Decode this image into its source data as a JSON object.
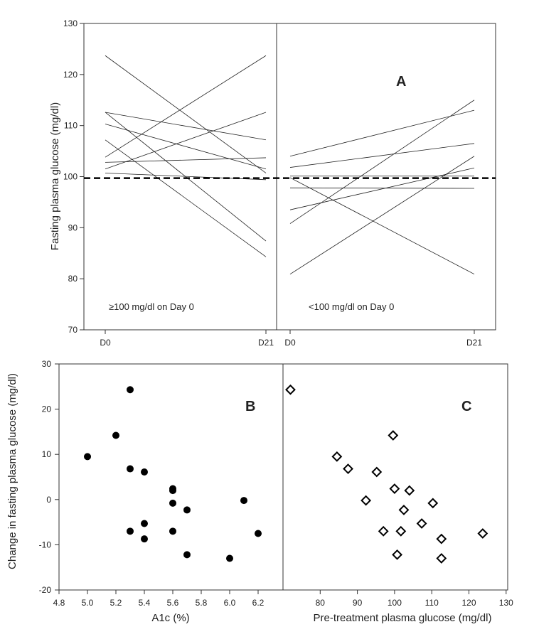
{
  "chart_data": [
    {
      "id": "A",
      "type": "line",
      "panel_label": "A",
      "ylabel": "Fasting plasma glucose (mg/dl)",
      "ylim": [
        70,
        130
      ],
      "yticks": [
        70,
        80,
        90,
        100,
        110,
        120,
        130
      ],
      "threshold": 99.7,
      "groups": [
        {
          "label": "≥100 mg/dl on Day 0",
          "x_labels": [
            "D0",
            "D21"
          ],
          "pairs": [
            [
              123.7,
              100.7
            ],
            [
              112.6,
              107.2
            ],
            [
              112.6,
              87.4
            ],
            [
              110.3,
              101.5
            ],
            [
              107.2,
              84.3
            ],
            [
              103.8,
              123.7
            ],
            [
              102.8,
              103.7
            ],
            [
              101.5,
              112.6
            ],
            [
              100.7,
              99.4
            ]
          ]
        },
        {
          "label": "<100 mg/dl on Day 0",
          "x_labels": [
            "D0",
            "D21"
          ],
          "pairs": [
            [
              104.0,
              113.0
            ],
            [
              101.8,
              106.5
            ],
            [
              100.1,
              100.1
            ],
            [
              99.8,
              80.9
            ],
            [
              97.8,
              97.7
            ],
            [
              93.5,
              101.7
            ],
            [
              90.8,
              115.0
            ],
            [
              80.9,
              104.0
            ]
          ]
        }
      ]
    },
    {
      "id": "B",
      "type": "scatter",
      "panel_label": "B",
      "xlabel": "A1c (%)",
      "ylabel": "Change in fasting plasma glucose (mg/dl)",
      "xlim": [
        4.8,
        6.4
      ],
      "xticks": [
        "4.8",
        "5.0",
        "5.2",
        "5.4",
        "5.6",
        "5.8",
        "6.0",
        "6.2"
      ],
      "ylim": [
        -20,
        30
      ],
      "yticks": [
        -20,
        -10,
        0,
        10,
        20,
        30
      ],
      "points": [
        [
          5.0,
          9.5
        ],
        [
          5.2,
          14.2
        ],
        [
          5.3,
          24.3
        ],
        [
          5.3,
          6.8
        ],
        [
          5.3,
          -7.0
        ],
        [
          5.4,
          6.1
        ],
        [
          5.4,
          -5.3
        ],
        [
          5.4,
          -8.7
        ],
        [
          5.6,
          2.4
        ],
        [
          5.6,
          2.0
        ],
        [
          5.6,
          -0.8
        ],
        [
          5.6,
          -7.0
        ],
        [
          5.7,
          -2.3
        ],
        [
          5.7,
          -12.2
        ],
        [
          6.0,
          -13.0
        ],
        [
          6.1,
          -0.2
        ],
        [
          6.2,
          -7.5
        ]
      ]
    },
    {
      "id": "C",
      "type": "scatter",
      "panel_label": "C",
      "xlabel": "Pre-treatment plasma glucose (mg/dl)",
      "xlim": [
        70,
        130
      ],
      "xticks": [
        "80",
        "90",
        "100",
        "110",
        "120",
        "130"
      ],
      "ylim": [
        -20,
        30
      ],
      "points": [
        [
          72.0,
          24.3
        ],
        [
          84.5,
          9.5
        ],
        [
          87.5,
          6.8
        ],
        [
          92.3,
          -0.2
        ],
        [
          95.2,
          6.1
        ],
        [
          97.0,
          -7.0
        ],
        [
          99.6,
          14.2
        ],
        [
          100.0,
          2.4
        ],
        [
          100.7,
          -12.2
        ],
        [
          101.7,
          -7.0
        ],
        [
          102.5,
          -2.3
        ],
        [
          104.0,
          2.0
        ],
        [
          107.3,
          -5.3
        ],
        [
          110.3,
          -0.8
        ],
        [
          112.6,
          -8.7
        ],
        [
          112.6,
          -13.0
        ],
        [
          123.7,
          -7.5
        ]
      ]
    }
  ]
}
